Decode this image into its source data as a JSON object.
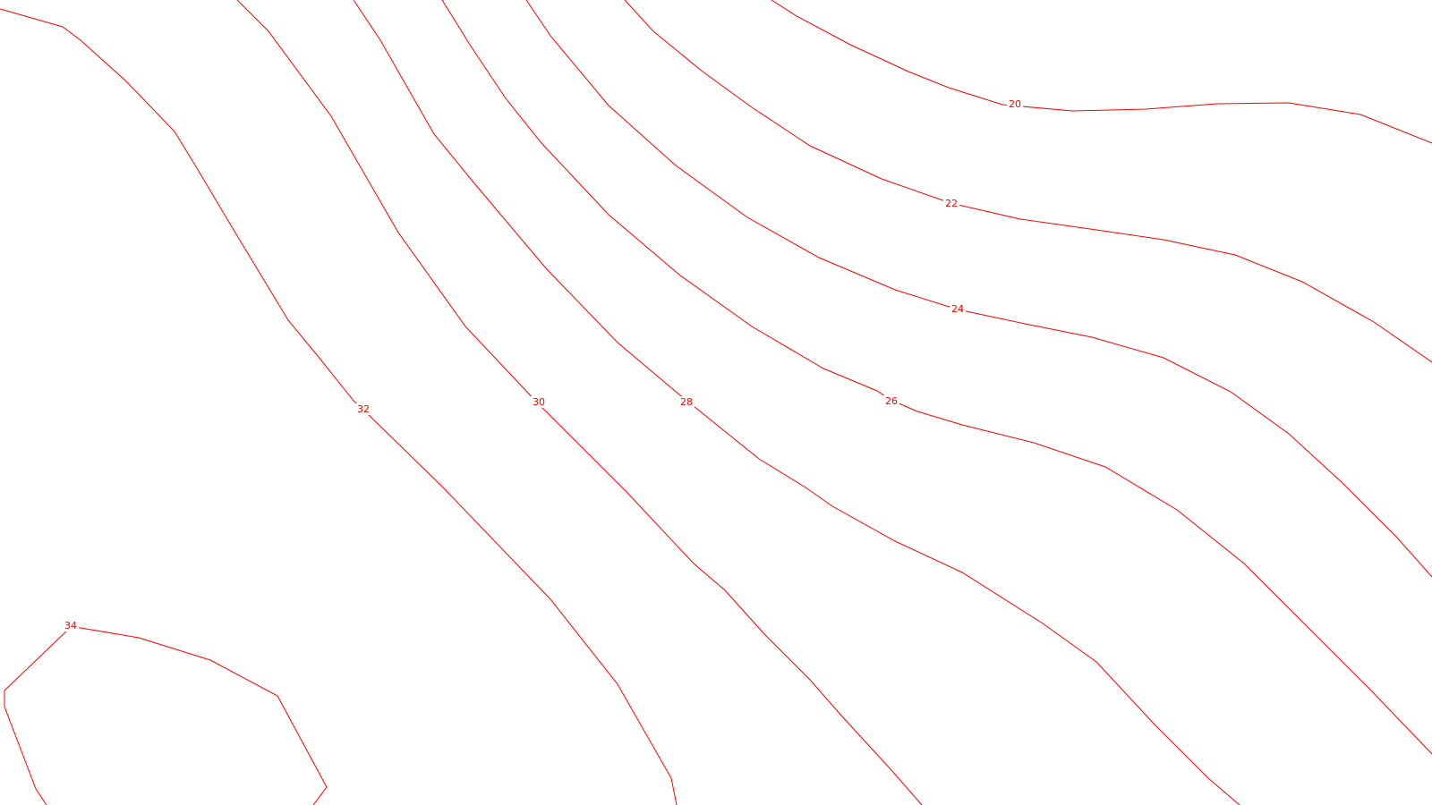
{
  "map": {
    "type": "contour-map",
    "line_color": "#ff0000",
    "label_color": "#ff0000",
    "background": "#ffffff",
    "contour_labels": [
      "20",
      "22",
      "24",
      "26",
      "28",
      "30",
      "32",
      "34"
    ]
  }
}
